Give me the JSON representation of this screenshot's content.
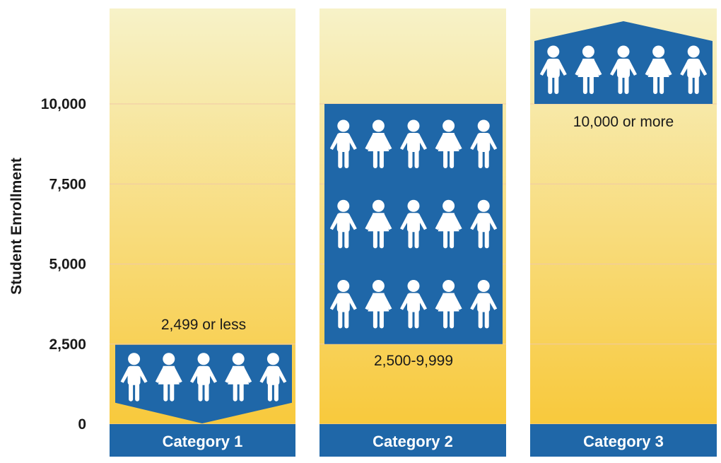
{
  "colors": {
    "panel_top": "#f7f2c8",
    "panel_bottom": "#f8c93c",
    "block": "#1f67a8",
    "figure": "#ffffff",
    "gridline": "#f0c7a6",
    "text": "#1a1a1a"
  },
  "chart_data": {
    "type": "bar",
    "ylabel": "Student Enrollment",
    "ylim": [
      0,
      12500
    ],
    "yticks": [
      0,
      2500,
      5000,
      7500,
      10000
    ],
    "ytick_labels": [
      "0",
      "2,500",
      "5,000",
      "7,500",
      "10,000"
    ],
    "categories": [
      "Category 1",
      "Category 2",
      "Category 3"
    ],
    "ranges": [
      {
        "category": "Category 1",
        "label": "2,499 or less",
        "low": 0,
        "high": 2499,
        "icon_rows": 1
      },
      {
        "category": "Category 2",
        "label": "2,500-9,999",
        "low": 2500,
        "high": 9999,
        "icon_rows": 3
      },
      {
        "category": "Category 3",
        "label": "10,000 or more",
        "low": 10000,
        "high": null,
        "icon_rows": 1
      }
    ],
    "icons_per_row": 5,
    "icon_name": "student-figure-icon",
    "grid": true
  }
}
